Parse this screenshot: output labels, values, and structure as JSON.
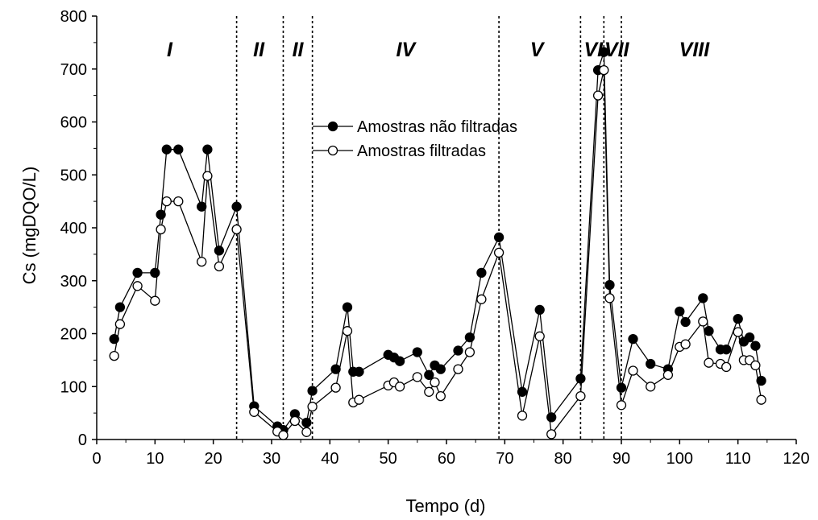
{
  "chart_data": {
    "type": "line",
    "xlabel": "Tempo (d)",
    "ylabel": "Cs (mgDQO/L)",
    "xlim": [
      0,
      120
    ],
    "ylim": [
      0,
      800
    ],
    "x_ticks": [
      0,
      10,
      20,
      30,
      40,
      50,
      60,
      70,
      80,
      90,
      100,
      110,
      120
    ],
    "y_ticks": [
      0,
      100,
      200,
      300,
      400,
      500,
      600,
      700,
      800
    ],
    "grid": false,
    "legend_position": "center",
    "series": [
      {
        "name": "Amostras não filtradas",
        "marker": "filled-circle",
        "color": "#000000",
        "points": [
          [
            3,
            190
          ],
          [
            4,
            250
          ],
          [
            7,
            315
          ],
          [
            10,
            315
          ],
          [
            11,
            425
          ],
          [
            12,
            548
          ],
          [
            14,
            548
          ],
          [
            18,
            440
          ],
          [
            19,
            548
          ],
          [
            21,
            357
          ],
          [
            24,
            440
          ],
          [
            27,
            63
          ],
          [
            31,
            25
          ],
          [
            32,
            18
          ],
          [
            34,
            48
          ],
          [
            36,
            32
          ],
          [
            37,
            92
          ],
          [
            41,
            133
          ],
          [
            43,
            250
          ],
          [
            44,
            128
          ],
          [
            45,
            128
          ],
          [
            50,
            160
          ],
          [
            51,
            155
          ],
          [
            52,
            148
          ],
          [
            55,
            165
          ],
          [
            57,
            122
          ],
          [
            58,
            140
          ],
          [
            59,
            133
          ],
          [
            62,
            168
          ],
          [
            64,
            193
          ],
          [
            66,
            315
          ],
          [
            69,
            382
          ],
          [
            73,
            90
          ],
          [
            76,
            245
          ],
          [
            78,
            42
          ],
          [
            83,
            115
          ],
          [
            86,
            698
          ],
          [
            87,
            732
          ],
          [
            88,
            292
          ],
          [
            90,
            98
          ],
          [
            92,
            190
          ],
          [
            95,
            143
          ],
          [
            98,
            133
          ],
          [
            100,
            242
          ],
          [
            101,
            222
          ],
          [
            104,
            267
          ],
          [
            105,
            205
          ],
          [
            107,
            170
          ],
          [
            108,
            170
          ],
          [
            110,
            228
          ],
          [
            111,
            185
          ],
          [
            112,
            193
          ],
          [
            113,
            177
          ],
          [
            114,
            111
          ]
        ]
      },
      {
        "name": "Amostras filtradas",
        "marker": "open-circle",
        "color": "#000000",
        "points": [
          [
            3,
            158
          ],
          [
            4,
            218
          ],
          [
            7,
            290
          ],
          [
            10,
            262
          ],
          [
            11,
            397
          ],
          [
            12,
            450
          ],
          [
            14,
            450
          ],
          [
            18,
            336
          ],
          [
            19,
            498
          ],
          [
            21,
            327
          ],
          [
            24,
            397
          ],
          [
            27,
            52
          ],
          [
            31,
            15
          ],
          [
            32,
            8
          ],
          [
            34,
            35
          ],
          [
            36,
            14
          ],
          [
            37,
            62
          ],
          [
            41,
            98
          ],
          [
            43,
            205
          ],
          [
            44,
            70
          ],
          [
            45,
            75
          ],
          [
            50,
            102
          ],
          [
            51,
            108
          ],
          [
            52,
            100
          ],
          [
            55,
            118
          ],
          [
            57,
            90
          ],
          [
            58,
            108
          ],
          [
            59,
            82
          ],
          [
            62,
            133
          ],
          [
            64,
            165
          ],
          [
            66,
            265
          ],
          [
            69,
            353
          ],
          [
            73,
            45
          ],
          [
            76,
            195
          ],
          [
            78,
            10
          ],
          [
            83,
            82
          ],
          [
            86,
            650
          ],
          [
            87,
            698
          ],
          [
            88,
            267
          ],
          [
            90,
            65
          ],
          [
            92,
            130
          ],
          [
            95,
            100
          ],
          [
            98,
            122
          ],
          [
            100,
            175
          ],
          [
            101,
            180
          ],
          [
            104,
            223
          ],
          [
            105,
            145
          ],
          [
            107,
            143
          ],
          [
            108,
            137
          ],
          [
            110,
            203
          ],
          [
            111,
            150
          ],
          [
            112,
            150
          ],
          [
            113,
            140
          ],
          [
            114,
            75
          ]
        ]
      }
    ],
    "phase_dividers": [
      24,
      32,
      37,
      69,
      83,
      87,
      90
    ],
    "phases": [
      {
        "label": "I",
        "x": 12.5
      },
      {
        "label": "II",
        "x": 27.8
      },
      {
        "label": "II",
        "x": 34.5
      },
      {
        "label": "IV",
        "x": 53
      },
      {
        "label": "V",
        "x": 75.5
      },
      {
        "label": "VI",
        "x": 85.2
      },
      {
        "label": "VII",
        "x": 89.2
      },
      {
        "label": "VIII",
        "x": 102.5
      }
    ]
  }
}
